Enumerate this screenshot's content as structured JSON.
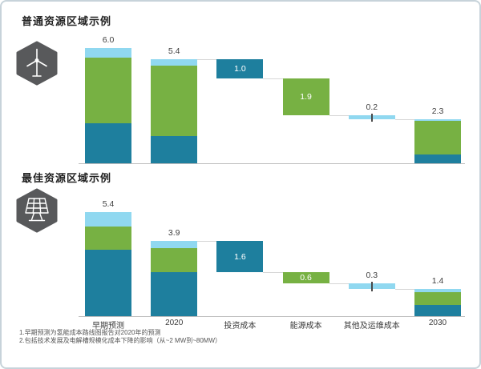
{
  "colors": {
    "teal": "#1e7f9e",
    "green": "#77b143",
    "sky": "#90d8f0",
    "hex_icon_bg": "#58595b",
    "baseline": "#bdbdbd",
    "connector": "#d6d6d6"
  },
  "x_axis": {
    "categories": [
      "早期预测",
      "2020",
      "投资成本",
      "能源成本",
      "其他及运维成本",
      "2030"
    ]
  },
  "footnotes": [
    "1.早期预测为氢能成本路线图报告对2020年的预测",
    "2.包括技术发展及电解槽规模化成本下降的影响（从~2 MW到~80MW）"
  ],
  "chart_data": [
    {
      "type": "waterfall",
      "title": "普通资源区域示例",
      "icon": "wind-turbine-icon",
      "categories": [
        "早期预测",
        "2020",
        "投资成本",
        "能源成本",
        "其他及运维成本",
        "2030"
      ],
      "ylim": [
        0,
        6.5
      ],
      "bars": [
        {
          "category": "早期预测",
          "kind": "stacked-total",
          "total": 6.0,
          "label": "6.0",
          "label_pos": "above",
          "base": 0,
          "segments": [
            {
              "color": "teal",
              "value": 2.08
            },
            {
              "color": "green",
              "value": 3.44
            },
            {
              "color": "sky",
              "value": 0.48
            }
          ]
        },
        {
          "category": "2020",
          "kind": "stacked-total",
          "total": 5.4,
          "label": "5.4",
          "label_pos": "above",
          "base": 0,
          "segments": [
            {
              "color": "teal",
              "value": 1.42
            },
            {
              "color": "green",
              "value": 3.68
            },
            {
              "color": "sky",
              "value": 0.3
            }
          ]
        },
        {
          "category": "投资成本",
          "kind": "decrease",
          "total": 1.0,
          "label": "1.0",
          "label_pos": "inside",
          "base": 4.4,
          "segments": [
            {
              "color": "teal",
              "value": 1.0
            }
          ]
        },
        {
          "category": "能源成本",
          "kind": "decrease",
          "total": 1.9,
          "label": "1.9",
          "label_pos": "inside",
          "base": 2.5,
          "segments": [
            {
              "color": "green",
              "value": 1.9
            }
          ]
        },
        {
          "category": "其他及运维成本",
          "kind": "decrease",
          "total": 0.2,
          "label": "0.2",
          "label_pos": "above",
          "tick": true,
          "base": 2.3,
          "segments": [
            {
              "color": "sky",
              "value": 0.2
            }
          ]
        },
        {
          "category": "2030",
          "kind": "stacked-total",
          "total": 2.3,
          "label": "2.3",
          "label_pos": "above",
          "base": 0,
          "segments": [
            {
              "color": "teal",
              "value": 0.47
            },
            {
              "color": "green",
              "value": 1.74
            },
            {
              "color": "sky",
              "value": 0.09
            }
          ]
        }
      ],
      "connectors": [
        {
          "after_col": 1,
          "level": 5.4
        },
        {
          "after_col": 2,
          "level": 4.4
        },
        {
          "after_col": 3,
          "level": 2.5
        },
        {
          "after_col": 4,
          "level": 2.3
        }
      ]
    },
    {
      "type": "waterfall",
      "title": "最佳资源区域示例",
      "icon": "solar-panel-icon",
      "categories": [
        "早期预测",
        "2020",
        "投资成本",
        "能源成本",
        "其他及运维成本",
        "2030"
      ],
      "ylim": [
        0,
        6.5
      ],
      "bars": [
        {
          "category": "早期预测",
          "kind": "stacked-total",
          "total": 5.4,
          "label": "5.4",
          "label_pos": "above",
          "base": 0,
          "segments": [
            {
              "color": "teal",
              "value": 3.46
            },
            {
              "color": "green",
              "value": 1.21
            },
            {
              "color": "sky",
              "value": 0.73
            }
          ]
        },
        {
          "category": "2020",
          "kind": "stacked-total",
          "total": 3.9,
          "label": "3.9",
          "label_pos": "above",
          "base": 0,
          "segments": [
            {
              "color": "teal",
              "value": 2.28
            },
            {
              "color": "green",
              "value": 1.25
            },
            {
              "color": "sky",
              "value": 0.37
            }
          ]
        },
        {
          "category": "投资成本",
          "kind": "decrease",
          "total": 1.6,
          "label": "1.6",
          "label_pos": "inside",
          "base": 2.3,
          "segments": [
            {
              "color": "teal",
              "value": 1.6
            }
          ]
        },
        {
          "category": "能源成本",
          "kind": "decrease",
          "total": 0.6,
          "label": "0.6",
          "label_pos": "inside",
          "base": 1.7,
          "segments": [
            {
              "color": "green",
              "value": 0.6
            }
          ]
        },
        {
          "category": "其他及运维成本",
          "kind": "decrease",
          "total": 0.3,
          "label": "0.3",
          "label_pos": "above",
          "tick": true,
          "base": 1.4,
          "segments": [
            {
              "color": "sky",
              "value": 0.3
            }
          ]
        },
        {
          "category": "2030",
          "kind": "stacked-total",
          "total": 1.4,
          "label": "1.4",
          "label_pos": "above",
          "base": 0,
          "segments": [
            {
              "color": "teal",
              "value": 0.59
            },
            {
              "color": "green",
              "value": 0.67
            },
            {
              "color": "sky",
              "value": 0.14
            }
          ]
        }
      ],
      "connectors": [
        {
          "after_col": 1,
          "level": 3.9
        },
        {
          "after_col": 2,
          "level": 2.3
        },
        {
          "after_col": 3,
          "level": 1.7
        },
        {
          "after_col": 4,
          "level": 1.4
        }
      ]
    }
  ]
}
